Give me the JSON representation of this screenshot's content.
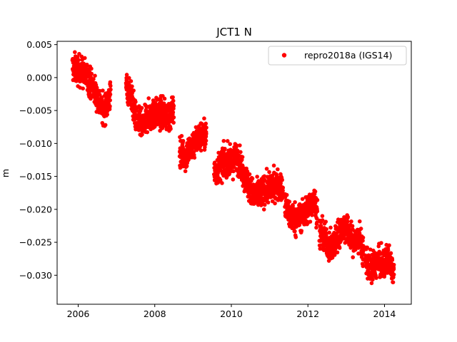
{
  "chart_data": {
    "type": "scatter",
    "title": "JCT1 N",
    "xlabel": "",
    "ylabel": "m",
    "xlim": [
      2005.45,
      2014.7
    ],
    "ylim": [
      -0.0344,
      0.0055
    ],
    "xticks": [
      2006,
      2008,
      2010,
      2012,
      2014
    ],
    "xtick_labels": [
      "2006",
      "2008",
      "2010",
      "2012",
      "2014"
    ],
    "yticks": [
      0.005,
      0.0,
      -0.005,
      -0.01,
      -0.015,
      -0.02,
      -0.025,
      -0.03
    ],
    "ytick_labels": [
      "0.005",
      "0.000",
      "−0.005",
      "−0.010",
      "−0.015",
      "−0.020",
      "−0.025",
      "−0.030"
    ],
    "grid": false,
    "legend_position": "top-right",
    "series": [
      {
        "name": "repro2018a (IGS14)",
        "color": "#ff0000",
        "marker": "circle",
        "segments": [
          {
            "x": [
              2005.85,
              2006.05,
              2006.25,
              2006.4,
              2006.5,
              2006.65,
              2006.75,
              2006.85
            ],
            "y": [
              0.0015,
              0.001,
              0.0,
              -0.0015,
              -0.003,
              -0.005,
              -0.004,
              -0.0025
            ]
          },
          {
            "x": [
              2007.25,
              2007.4,
              2007.5,
              2007.6,
              2007.7,
              2007.8,
              2008.0,
              2008.2,
              2008.4,
              2008.5
            ],
            "y": [
              -0.001,
              -0.003,
              -0.006,
              -0.007,
              -0.0075,
              -0.006,
              -0.0055,
              -0.0055,
              -0.006,
              -0.0045
            ]
          },
          {
            "x": [
              2008.65,
              2008.8,
              2008.95,
              2009.1,
              2009.25,
              2009.35
            ],
            "y": [
              -0.011,
              -0.012,
              -0.0105,
              -0.0095,
              -0.0085,
              -0.009
            ]
          },
          {
            "x": [
              2009.55,
              2009.7,
              2009.85,
              2010.0,
              2010.15,
              2010.3,
              2010.45,
              2010.6,
              2010.75,
              2010.9,
              2011.1,
              2011.25,
              2011.35
            ],
            "y": [
              -0.0145,
              -0.0135,
              -0.0125,
              -0.013,
              -0.012,
              -0.014,
              -0.0165,
              -0.018,
              -0.0175,
              -0.017,
              -0.0165,
              -0.016,
              -0.0175
            ]
          },
          {
            "x": [
              2011.4,
              2011.55,
              2011.7,
              2011.85,
              2012.0,
              2012.15,
              2012.25
            ],
            "y": [
              -0.0195,
              -0.021,
              -0.0215,
              -0.021,
              -0.02,
              -0.0185,
              -0.0205
            ]
          },
          {
            "x": [
              2012.3,
              2012.45,
              2012.6,
              2012.75,
              2012.9,
              2013.05,
              2013.2,
              2013.35,
              2013.45
            ],
            "y": [
              -0.0235,
              -0.0245,
              -0.026,
              -0.0245,
              -0.0225,
              -0.0235,
              -0.025,
              -0.0245,
              -0.0265
            ]
          },
          {
            "x": [
              2013.5,
              2013.65,
              2013.8,
              2013.95,
              2014.1,
              2014.25
            ],
            "y": [
              -0.0275,
              -0.029,
              -0.028,
              -0.0285,
              -0.0275,
              -0.0295
            ]
          }
        ]
      }
    ]
  }
}
